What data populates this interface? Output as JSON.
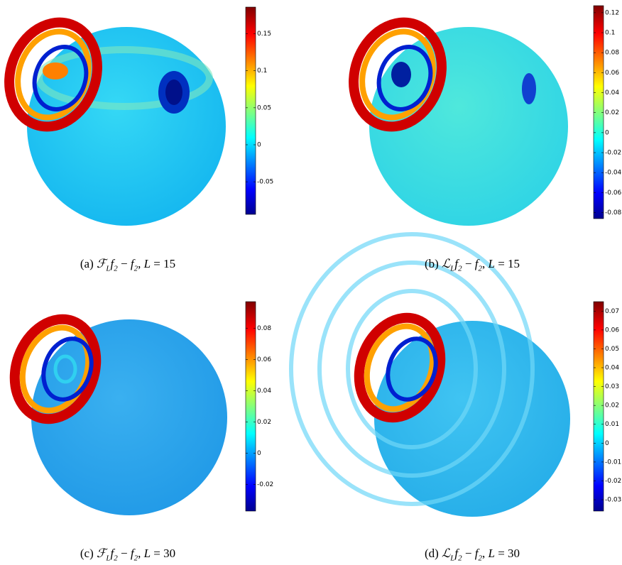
{
  "figure": {
    "panels": [
      {
        "caption": [
          {
            "text": "(a) ",
            "style": "plain"
          },
          {
            "text": "ℱ",
            "style": "math"
          },
          {
            "text": "L",
            "style": "sub"
          },
          {
            "text": "f",
            "style": "math"
          },
          {
            "text": "2",
            "style": "sub"
          },
          {
            "text": " − ",
            "style": "plain"
          },
          {
            "text": "f",
            "style": "math"
          },
          {
            "text": "2",
            "style": "sub"
          },
          {
            "text": ", ",
            "style": "plain"
          },
          {
            "text": "L",
            "style": "math"
          },
          {
            "text": " = 15",
            "style": "plain"
          }
        ],
        "colorbar": {
          "clim": [
            -0.094,
            0.186
          ],
          "ticks": [
            -0.05,
            0,
            0.05,
            0.1,
            0.15
          ]
        }
      },
      {
        "caption": [
          {
            "text": "(b) ",
            "style": "plain"
          },
          {
            "text": "ℒ",
            "style": "math"
          },
          {
            "text": "L",
            "style": "sub"
          },
          {
            "text": "f",
            "style": "math"
          },
          {
            "text": "2",
            "style": "sub"
          },
          {
            "text": " − ",
            "style": "plain"
          },
          {
            "text": "f",
            "style": "math"
          },
          {
            "text": "2",
            "style": "sub"
          },
          {
            "text": ", ",
            "style": "plain"
          },
          {
            "text": "L",
            "style": "math"
          },
          {
            "text": " = 15",
            "style": "plain"
          }
        ],
        "colorbar": {
          "clim": [
            -0.086,
            0.127
          ],
          "ticks": [
            -0.08,
            -0.06,
            -0.04,
            -0.02,
            0,
            0.02,
            0.04,
            0.06,
            0.08,
            0.1,
            0.12
          ]
        }
      },
      {
        "caption": [
          {
            "text": "(c) ",
            "style": "plain"
          },
          {
            "text": "ℱ",
            "style": "math"
          },
          {
            "text": "L",
            "style": "sub"
          },
          {
            "text": "f",
            "style": "math"
          },
          {
            "text": "2",
            "style": "sub"
          },
          {
            "text": " − ",
            "style": "plain"
          },
          {
            "text": "f",
            "style": "math"
          },
          {
            "text": "2",
            "style": "sub"
          },
          {
            "text": ", ",
            "style": "plain"
          },
          {
            "text": "L",
            "style": "math"
          },
          {
            "text": " = 30",
            "style": "plain"
          }
        ],
        "colorbar": {
          "clim": [
            -0.037,
            0.097
          ],
          "ticks": [
            -0.02,
            0,
            0.02,
            0.04,
            0.06,
            0.08
          ]
        }
      },
      {
        "caption": [
          {
            "text": "(d) ",
            "style": "plain"
          },
          {
            "text": "ℒ",
            "style": "math"
          },
          {
            "text": "L",
            "style": "sub"
          },
          {
            "text": "f",
            "style": "math"
          },
          {
            "text": "2",
            "style": "sub"
          },
          {
            "text": " − ",
            "style": "plain"
          },
          {
            "text": "f",
            "style": "math"
          },
          {
            "text": "2",
            "style": "sub"
          },
          {
            "text": ", ",
            "style": "plain"
          },
          {
            "text": "L",
            "style": "math"
          },
          {
            "text": " = 30",
            "style": "plain"
          }
        ],
        "colorbar": {
          "clim": [
            -0.036,
            0.075
          ],
          "ticks": [
            -0.03,
            -0.02,
            -0.01,
            0,
            0.01,
            0.02,
            0.03,
            0.04,
            0.05,
            0.06,
            0.07
          ]
        }
      }
    ]
  }
}
